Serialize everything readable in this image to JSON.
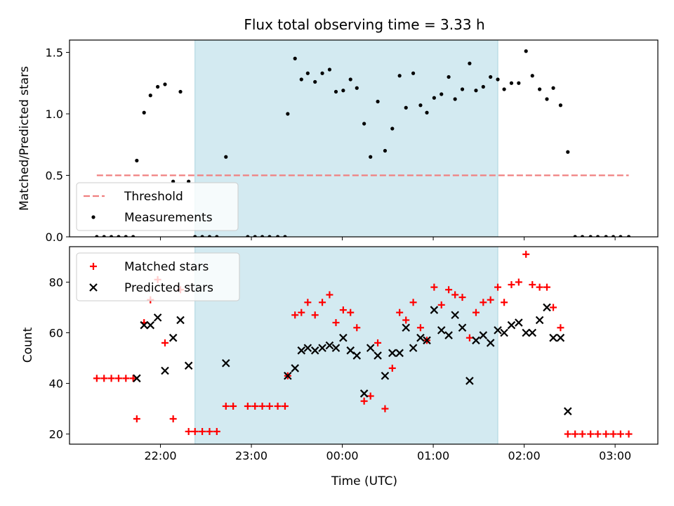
{
  "chart_data": [
    {
      "type": "scatter",
      "title": "Flux total observing time = 3.33 h",
      "ylabel": "Matched/Predicted stars",
      "xlabel": "",
      "x_units": "hours after 21:00 UTC",
      "xlim": [
        21.0,
        27.47
      ],
      "ylim": [
        0,
        1.6
      ],
      "yticks": [
        0.0,
        0.5,
        1.0,
        1.5
      ],
      "ytick_labels": [
        "0.0",
        "0.5",
        "1.0",
        "1.5"
      ],
      "xticks": [
        22,
        23,
        24,
        25,
        26,
        27
      ],
      "shaded_span": [
        22.38,
        25.71
      ],
      "shaded_color": "#d3eaf1",
      "threshold": {
        "name": "Threshold",
        "value": 0.5,
        "x_range": [
          21.3,
          27.15
        ],
        "color": "#f08080"
      },
      "legend": {
        "placement": "lower-left",
        "entries": [
          "Threshold",
          "Measurements"
        ]
      },
      "series": [
        {
          "name": "Measurements",
          "color": "#000000",
          "marker": "dot",
          "points": [
            [
              21.3,
              0
            ],
            [
              21.38,
              0
            ],
            [
              21.46,
              0
            ],
            [
              21.54,
              0
            ],
            [
              21.62,
              0
            ],
            [
              21.7,
              0
            ],
            [
              21.74,
              0.62
            ],
            [
              21.82,
              1.01
            ],
            [
              21.89,
              1.15
            ],
            [
              21.97,
              1.22
            ],
            [
              22.05,
              1.24
            ],
            [
              22.14,
              0.45
            ],
            [
              22.22,
              1.18
            ],
            [
              22.31,
              0.45
            ],
            [
              22.38,
              0
            ],
            [
              22.46,
              0
            ],
            [
              22.54,
              0
            ],
            [
              22.62,
              0
            ],
            [
              22.72,
              0.65
            ],
            [
              22.96,
              0
            ],
            [
              23.04,
              0
            ],
            [
              23.12,
              0
            ],
            [
              23.2,
              0
            ],
            [
              23.29,
              0
            ],
            [
              23.37,
              0
            ],
            [
              23.4,
              1.0
            ],
            [
              23.48,
              1.45
            ],
            [
              23.55,
              1.28
            ],
            [
              23.62,
              1.33
            ],
            [
              23.7,
              1.26
            ],
            [
              23.78,
              1.33
            ],
            [
              23.86,
              1.36
            ],
            [
              23.93,
              1.18
            ],
            [
              24.01,
              1.19
            ],
            [
              24.09,
              1.28
            ],
            [
              24.16,
              1.21
            ],
            [
              24.24,
              0.92
            ],
            [
              24.31,
              0.65
            ],
            [
              24.39,
              1.1
            ],
            [
              24.47,
              0.7
            ],
            [
              24.55,
              0.88
            ],
            [
              24.63,
              1.31
            ],
            [
              24.7,
              1.05
            ],
            [
              24.78,
              1.33
            ],
            [
              24.86,
              1.07
            ],
            [
              24.93,
              1.01
            ],
            [
              25.01,
              1.13
            ],
            [
              25.09,
              1.16
            ],
            [
              25.17,
              1.3
            ],
            [
              25.24,
              1.12
            ],
            [
              25.32,
              1.2
            ],
            [
              25.4,
              1.41
            ],
            [
              25.47,
              1.19
            ],
            [
              25.55,
              1.22
            ],
            [
              25.63,
              1.3
            ],
            [
              25.71,
              1.28
            ],
            [
              25.78,
              1.2
            ],
            [
              25.86,
              1.25
            ],
            [
              25.94,
              1.25
            ],
            [
              26.02,
              1.51
            ],
            [
              26.09,
              1.31
            ],
            [
              26.17,
              1.2
            ],
            [
              26.25,
              1.12
            ],
            [
              26.32,
              1.21
            ],
            [
              26.4,
              1.07
            ],
            [
              26.48,
              0.69
            ],
            [
              26.56,
              0
            ],
            [
              26.64,
              0
            ],
            [
              26.73,
              0
            ],
            [
              26.81,
              0
            ],
            [
              26.9,
              0
            ],
            [
              26.98,
              0
            ],
            [
              27.06,
              0
            ],
            [
              27.15,
              0
            ]
          ]
        }
      ]
    },
    {
      "type": "scatter",
      "title": "",
      "xlabel": "Time (UTC)",
      "ylabel": "Count",
      "x_units": "hours after 21:00 UTC",
      "xlim": [
        21.0,
        27.47
      ],
      "ylim": [
        16,
        94
      ],
      "yticks": [
        20,
        40,
        60,
        80
      ],
      "ytick_labels": [
        "20",
        "40",
        "60",
        "80"
      ],
      "xticks": [
        22,
        23,
        24,
        25,
        26,
        27
      ],
      "xtick_labels": [
        "22:00",
        "23:00",
        "00:00",
        "01:00",
        "02:00",
        "03:00"
      ],
      "shaded_span": [
        22.38,
        25.71
      ],
      "shaded_color": "#d3eaf1",
      "legend": {
        "placement": "upper-left",
        "entries": [
          "Matched stars",
          "Predicted stars"
        ]
      },
      "series": [
        {
          "name": "Matched stars",
          "color": "#ff0000",
          "marker": "plus",
          "points": [
            [
              21.3,
              42
            ],
            [
              21.38,
              42
            ],
            [
              21.46,
              42
            ],
            [
              21.54,
              42
            ],
            [
              21.62,
              42
            ],
            [
              21.7,
              42
            ],
            [
              21.74,
              26
            ],
            [
              21.82,
              64
            ],
            [
              21.89,
              73
            ],
            [
              21.97,
              81
            ],
            [
              22.05,
              56
            ],
            [
              22.14,
              26
            ],
            [
              22.22,
              77
            ],
            [
              22.31,
              21
            ],
            [
              22.38,
              21
            ],
            [
              22.46,
              21
            ],
            [
              22.54,
              21
            ],
            [
              22.62,
              21
            ],
            [
              22.72,
              31
            ],
            [
              22.8,
              31
            ],
            [
              22.96,
              31
            ],
            [
              23.04,
              31
            ],
            [
              23.12,
              31
            ],
            [
              23.2,
              31
            ],
            [
              23.29,
              31
            ],
            [
              23.37,
              31
            ],
            [
              23.4,
              43
            ],
            [
              23.48,
              67
            ],
            [
              23.55,
              68
            ],
            [
              23.62,
              72
            ],
            [
              23.7,
              67
            ],
            [
              23.78,
              72
            ],
            [
              23.86,
              75
            ],
            [
              23.93,
              64
            ],
            [
              24.01,
              69
            ],
            [
              24.09,
              68
            ],
            [
              24.16,
              62
            ],
            [
              24.24,
              33
            ],
            [
              24.31,
              35
            ],
            [
              24.39,
              56
            ],
            [
              24.47,
              30
            ],
            [
              24.55,
              46
            ],
            [
              24.63,
              68
            ],
            [
              24.7,
              65
            ],
            [
              24.78,
              72
            ],
            [
              24.86,
              62
            ],
            [
              24.93,
              57
            ],
            [
              25.01,
              78
            ],
            [
              25.09,
              71
            ],
            [
              25.17,
              77
            ],
            [
              25.24,
              75
            ],
            [
              25.32,
              74
            ],
            [
              25.4,
              58
            ],
            [
              25.47,
              68
            ],
            [
              25.55,
              72
            ],
            [
              25.63,
              73
            ],
            [
              25.71,
              78
            ],
            [
              25.78,
              72
            ],
            [
              25.86,
              79
            ],
            [
              25.94,
              80
            ],
            [
              26.02,
              91
            ],
            [
              26.09,
              79
            ],
            [
              26.17,
              78
            ],
            [
              26.25,
              78
            ],
            [
              26.32,
              70
            ],
            [
              26.4,
              62
            ],
            [
              26.48,
              20
            ],
            [
              26.56,
              20
            ],
            [
              26.64,
              20
            ],
            [
              26.73,
              20
            ],
            [
              26.81,
              20
            ],
            [
              26.9,
              20
            ],
            [
              26.98,
              20
            ],
            [
              27.06,
              20
            ],
            [
              27.15,
              20
            ]
          ]
        },
        {
          "name": "Predicted stars",
          "color": "#000000",
          "marker": "x",
          "points": [
            [
              21.74,
              42
            ],
            [
              21.82,
              63
            ],
            [
              21.89,
              63
            ],
            [
              21.97,
              66
            ],
            [
              22.05,
              45
            ],
            [
              22.14,
              58
            ],
            [
              22.22,
              65
            ],
            [
              22.31,
              47
            ],
            [
              22.72,
              48
            ],
            [
              23.4,
              43
            ],
            [
              23.48,
              46
            ],
            [
              23.55,
              53
            ],
            [
              23.62,
              54
            ],
            [
              23.7,
              53
            ],
            [
              23.78,
              54
            ],
            [
              23.86,
              55
            ],
            [
              23.93,
              54
            ],
            [
              24.01,
              58
            ],
            [
              24.09,
              53
            ],
            [
              24.16,
              51
            ],
            [
              24.24,
              36
            ],
            [
              24.31,
              54
            ],
            [
              24.39,
              51
            ],
            [
              24.47,
              43
            ],
            [
              24.55,
              52
            ],
            [
              24.63,
              52
            ],
            [
              24.7,
              62
            ],
            [
              24.78,
              54
            ],
            [
              24.86,
              58
            ],
            [
              24.93,
              57
            ],
            [
              25.01,
              69
            ],
            [
              25.09,
              61
            ],
            [
              25.17,
              59
            ],
            [
              25.24,
              67
            ],
            [
              25.32,
              62
            ],
            [
              25.4,
              41
            ],
            [
              25.47,
              57
            ],
            [
              25.55,
              59
            ],
            [
              25.63,
              56
            ],
            [
              25.71,
              61
            ],
            [
              25.78,
              60
            ],
            [
              25.86,
              63
            ],
            [
              25.94,
              64
            ],
            [
              26.02,
              60
            ],
            [
              26.09,
              60
            ],
            [
              26.17,
              65
            ],
            [
              26.25,
              70
            ],
            [
              26.32,
              58
            ],
            [
              26.4,
              58
            ],
            [
              26.48,
              29
            ]
          ]
        }
      ]
    }
  ]
}
